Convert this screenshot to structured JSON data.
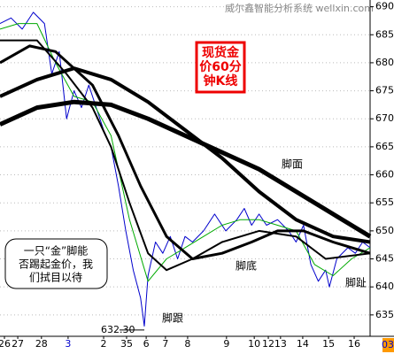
{
  "chart_data": {
    "type": "line",
    "watermark": "威尔鑫智能分析系统 wellxin.com",
    "title_lines": [
      "现货金",
      "价60分",
      "钟K线"
    ],
    "annotations": [
      "脚面",
      "脚底",
      "脚跟",
      "脚趾",
      "632.30"
    ],
    "note_lines": [
      "一只“金”脚能",
      "否踢起金价，我",
      "们拭目以待"
    ],
    "axis_end_label": "03",
    "xlim": [
      0,
      100
    ],
    "ylim": [
      631.5,
      691.2
    ],
    "yticks": [
      635,
      640,
      645,
      650,
      655,
      660,
      665,
      670,
      675,
      680,
      685,
      690
    ],
    "xticks": [
      {
        "value": 1.2,
        "label": "26"
      },
      {
        "value": 4.8,
        "label": "27"
      },
      {
        "value": 11.2,
        "label": "28"
      },
      {
        "value": 18.4,
        "label": "3"
      },
      {
        "value": 28,
        "label": "2"
      },
      {
        "value": 34.2,
        "label": "35"
      },
      {
        "value": 39.5,
        "label": "6"
      },
      {
        "value": 44.7,
        "label": "7"
      },
      {
        "value": 50.7,
        "label": "8"
      },
      {
        "value": 61.2,
        "label": "9"
      },
      {
        "value": 68.7,
        "label": "10"
      },
      {
        "value": 72.5,
        "label": "12"
      },
      {
        "value": 75.8,
        "label": "13"
      },
      {
        "value": 81.8,
        "label": "14"
      },
      {
        "value": 88.8,
        "label": "15"
      },
      {
        "value": 95.7,
        "label": "16"
      }
    ],
    "low": 632.3,
    "low_x": 39,
    "series": [
      {
        "color": "#0000cc",
        "width": 1,
        "x": [
          0,
          3,
          6,
          9,
          12,
          14,
          16,
          18,
          20,
          22,
          24,
          26,
          28,
          30,
          32,
          34,
          36,
          38,
          39,
          40,
          42,
          44,
          46,
          48,
          50,
          52,
          55,
          58,
          61,
          64,
          66,
          68,
          70,
          72,
          75,
          78,
          80,
          82,
          84,
          86,
          88,
          89,
          91,
          94,
          96,
          98,
          100
        ],
        "values": [
          687,
          688,
          686,
          689,
          687,
          678,
          682,
          670,
          675,
          672,
          676,
          672,
          668,
          665,
          658,
          650,
          643,
          638,
          633,
          642,
          648,
          646,
          649,
          645,
          649,
          648,
          650,
          653,
          650,
          652,
          654,
          651,
          653,
          651,
          652,
          650,
          648,
          651,
          644,
          641,
          643,
          640,
          645,
          647,
          646,
          648,
          647
        ]
      },
      {
        "color": "#00aa00",
        "width": 1,
        "x": [
          0,
          5,
          10,
          15,
          20,
          25,
          30,
          35,
          40,
          45,
          50,
          55,
          60,
          65,
          70,
          75,
          80,
          85,
          90,
          95,
          100
        ],
        "values": [
          686,
          687,
          687,
          680,
          674,
          673,
          667,
          652,
          641,
          645,
          647,
          649,
          651,
          652,
          652,
          651,
          650,
          644,
          642,
          645,
          647
        ]
      },
      {
        "color": "#000000",
        "width": 5,
        "x": [
          0,
          10,
          20,
          30,
          40,
          50,
          60,
          70,
          80,
          90,
          100
        ],
        "values": [
          669,
          672,
          673,
          672.5,
          670,
          667,
          664,
          661,
          657,
          653,
          649
        ]
      },
      {
        "color": "#000000",
        "width": 4,
        "x": [
          0,
          10,
          20,
          30,
          40,
          50,
          60,
          70,
          80,
          90,
          100
        ],
        "values": [
          674,
          677,
          679,
          677,
          673,
          668,
          663,
          657,
          652,
          649,
          648
        ]
      },
      {
        "color": "#000000",
        "width": 3,
        "x": [
          0,
          8,
          15,
          25,
          32,
          38,
          45,
          52,
          60,
          68,
          75,
          82,
          90,
          100
        ],
        "values": [
          680,
          683,
          682,
          676,
          667,
          658,
          649,
          645,
          646,
          648,
          650,
          650,
          648,
          646
        ]
      },
      {
        "color": "#000000",
        "width": 2,
        "x": [
          0,
          10,
          18,
          25,
          30,
          35,
          40,
          45,
          52,
          60,
          70,
          80,
          88,
          100
        ],
        "values": [
          684,
          684,
          678,
          672,
          665,
          655,
          646,
          643,
          645,
          648,
          650,
          649,
          645,
          646
        ]
      }
    ]
  }
}
